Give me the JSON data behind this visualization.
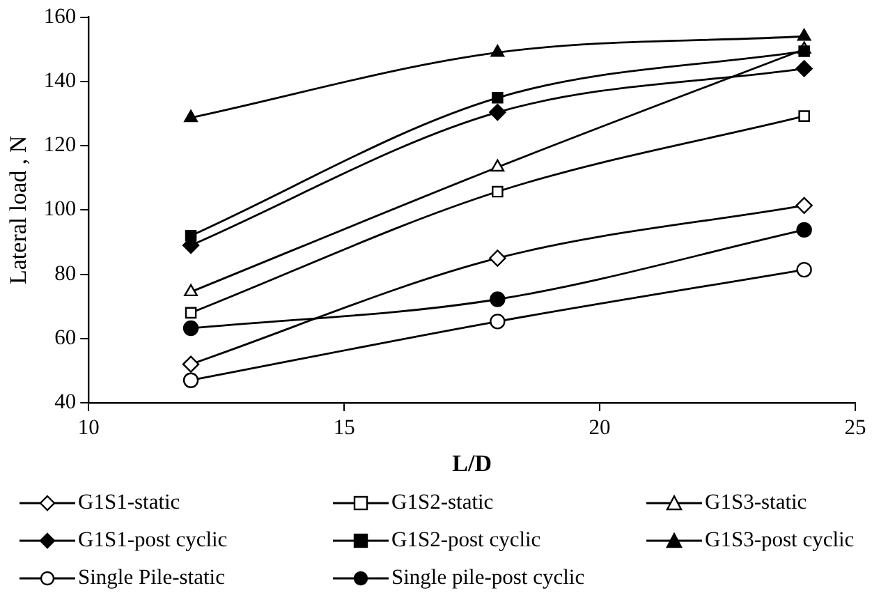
{
  "chart_data": {
    "type": "line",
    "xlabel": "L/D",
    "ylabel": "Lateral load , N",
    "x": [
      12,
      18,
      24
    ],
    "xlim": [
      10,
      25
    ],
    "xticks": [
      10,
      15,
      20,
      25
    ],
    "ylim": [
      40,
      160
    ],
    "yticks": [
      40,
      60,
      80,
      100,
      120,
      140,
      160
    ],
    "grid": false,
    "legend": "bottom",
    "line_style": "solid",
    "series": [
      {
        "name": "G1S1-static",
        "color": "#000000",
        "marker": "diamond",
        "values": [
          52,
          85,
          101.4
        ]
      },
      {
        "name": "G1S2-static",
        "color": "#000000",
        "marker": "square",
        "values": [
          68,
          105.7,
          129.2
        ]
      },
      {
        "name": "G1S3-static",
        "color": "#000000",
        "marker": "triangle",
        "values": [
          74.5,
          113.3,
          150
        ]
      },
      {
        "name": "G1S1-post cyclic",
        "color": "#000000",
        "marker": "diamond",
        "values": [
          89,
          130.4,
          144
        ]
      },
      {
        "name": "G1S2-post cyclic",
        "color": "#000000",
        "marker": "square",
        "values": [
          92,
          134.9,
          149.4
        ]
      },
      {
        "name": "G1S3-post cyclic",
        "color": "#000000",
        "marker": "triangle",
        "values": [
          128.7,
          149,
          154
        ]
      },
      {
        "name": "Single Pile-static",
        "color": "#000000",
        "marker": "circle",
        "values": [
          47,
          65.3,
          81.4
        ]
      },
      {
        "name": "Single pile-post cyclic",
        "color": "#000000",
        "marker": "circle",
        "values": [
          63.2,
          72.2,
          93.8
        ]
      }
    ]
  }
}
